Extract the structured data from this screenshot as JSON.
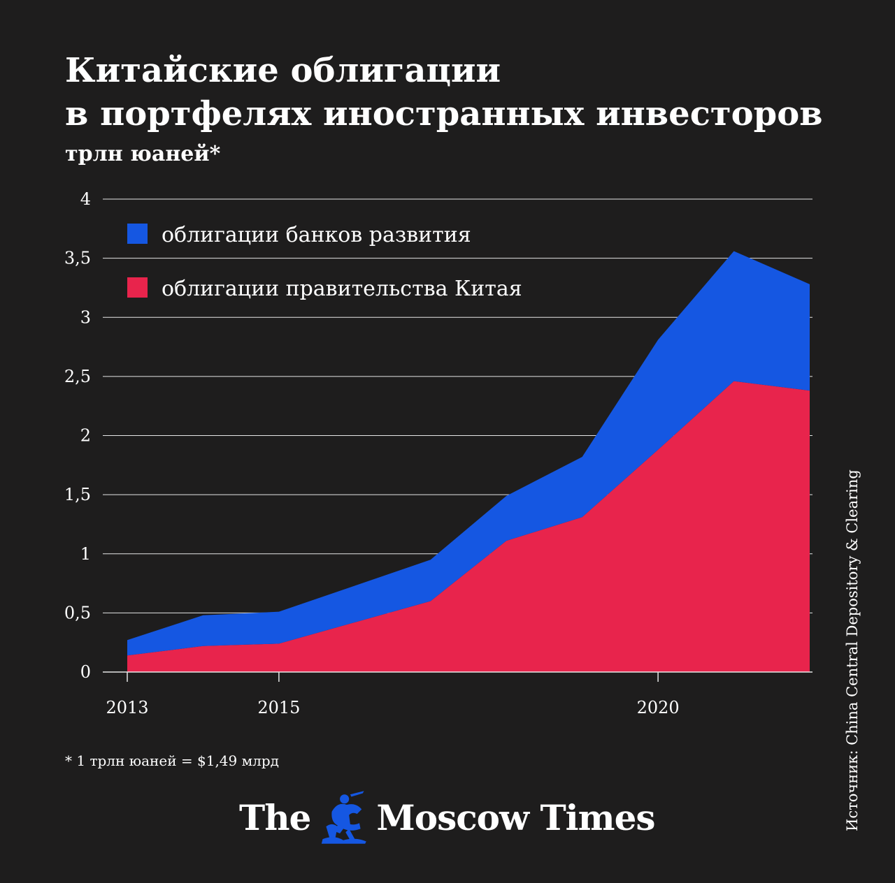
{
  "title": {
    "line1": "Китайские облигации",
    "line2": "в портфелях иностранных инвесторов"
  },
  "subtitle": "трлн юаней*",
  "footnote": "* 1 трлн юаней = $1,49 млрд",
  "source": "Источник: China Central Depository & Clearing",
  "logo": {
    "word1": "The",
    "word2": "Moscow Times"
  },
  "colors": {
    "background": "#1e1d1d",
    "development_bank_bonds": "#1557e2",
    "government_bonds": "#e8244c",
    "grid": "#e6e6e6"
  },
  "chart_data": {
    "type": "area",
    "stacked": true,
    "x": [
      2013,
      2014,
      2015,
      2016,
      2017,
      2018,
      2019,
      2020,
      2021,
      2022
    ],
    "xticks": [
      2013,
      2015,
      2020
    ],
    "xtick_labels": [
      "2013",
      "2015",
      "2020"
    ],
    "yticks": [
      0,
      0.5,
      1,
      1.5,
      2,
      2.5,
      3,
      3.5,
      4
    ],
    "ytick_labels": [
      "0",
      "0,5",
      "1",
      "1,5",
      "2",
      "2,5",
      "3",
      "3,5",
      "4"
    ],
    "ylim": [
      0,
      4
    ],
    "xlim": [
      2013,
      2022
    ],
    "grid": true,
    "legend": "top-left",
    "series": [
      {
        "name": "облигации правительства Китая",
        "key": "government",
        "color": "#e8244c",
        "values": [
          0.14,
          0.22,
          0.24,
          0.42,
          0.6,
          1.11,
          1.31,
          1.88,
          2.46,
          2.38
        ]
      },
      {
        "name": "облигации банков развития",
        "key": "development",
        "color": "#1557e2",
        "values": [
          0.13,
          0.26,
          0.27,
          0.31,
          0.35,
          0.38,
          0.51,
          0.93,
          1.1,
          0.9
        ]
      }
    ],
    "legend_order": [
      "development",
      "government"
    ]
  }
}
